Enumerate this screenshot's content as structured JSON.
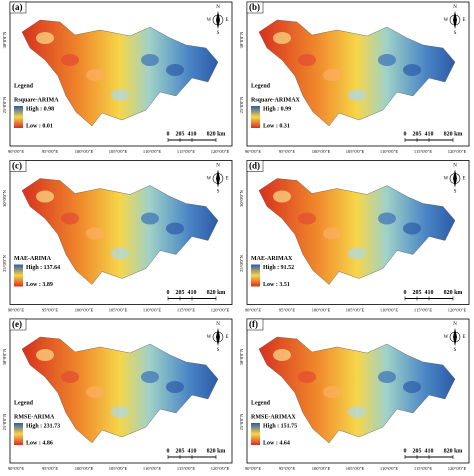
{
  "panels": [
    {
      "label": "(a)",
      "legend_heading": "Legend",
      "legend_title": "Rsquare-ARIMA",
      "high": "High : 0.98",
      "low": "Low : 0.01"
    },
    {
      "label": "(b)",
      "legend_heading": "Legend",
      "legend_title": "Rsquare-ARIMAX",
      "high": "High : 0.99",
      "low": "Low : 0.31"
    },
    {
      "label": "(c)",
      "legend_title": "MAE-ARIMA",
      "high": "High : 137.64",
      "low": "Low : 3.89"
    },
    {
      "label": "(d)",
      "legend_title": "MAE-ARIMAX",
      "high": "High : 91.52",
      "low": "Low : 3.51"
    },
    {
      "label": "(e)",
      "legend_heading": "Legend",
      "legend_title": "RMSE-ARIMA",
      "high": "High : 231.73",
      "low": "Low : 4.86"
    },
    {
      "label": "(f)",
      "legend_heading": "Legend",
      "legend_title": "RMSE-ARIMAX",
      "high": "High : 151.75",
      "low": "Low : 4.64"
    }
  ],
  "scale": [
    "0",
    "205",
    "410",
    "820 km"
  ],
  "compass": [
    "N",
    "E",
    "S",
    "W"
  ],
  "lon_labels": [
    "90°0'0\"E",
    "95°0'0\"E",
    "100°0'0\"E",
    "105°0'0\"E",
    "110°0'0\"E",
    "115°0'0\"E",
    "120°0'0\"E"
  ],
  "lat_labels": [
    "30°0'0\"N",
    "25°0'0\"N"
  ]
}
